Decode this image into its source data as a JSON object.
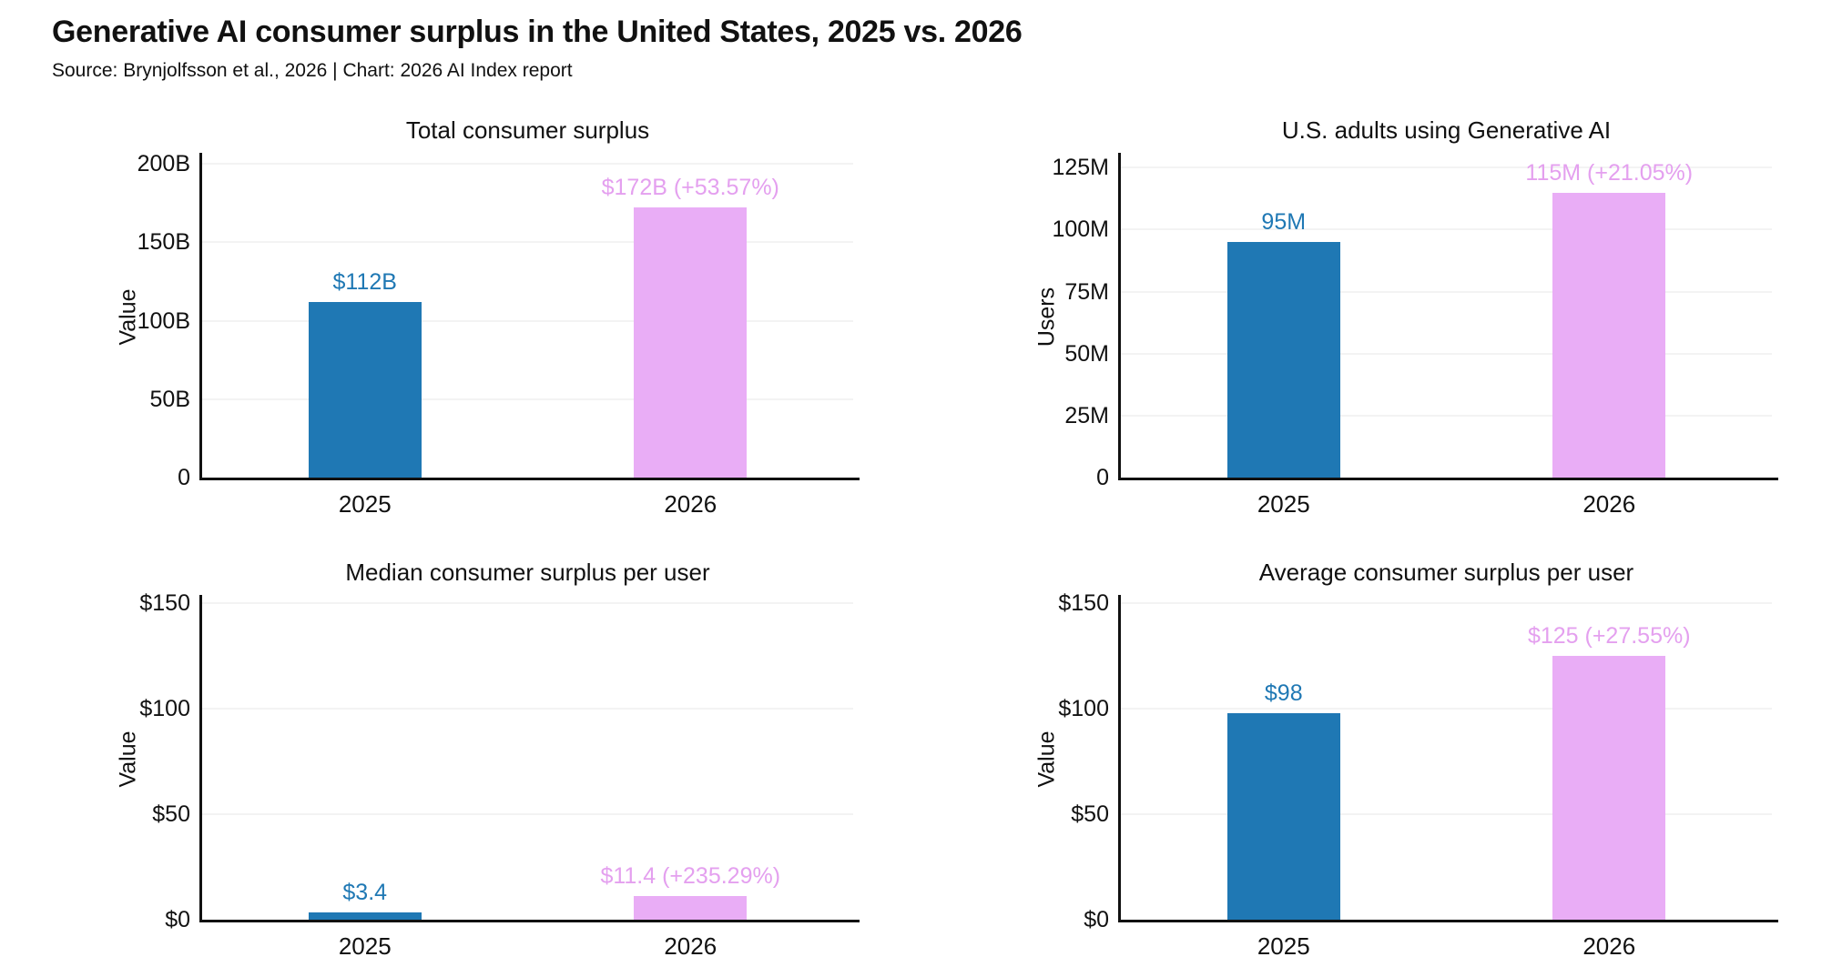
{
  "header": {
    "title": "Generative AI consumer surplus in the United States, 2025 vs. 2026",
    "subtitle": "Source: Brynjolfsson et al., 2026 | Chart: 2026 AI Index report"
  },
  "colors": {
    "background": "#ffffff",
    "text": "#111111",
    "axis": "#111111",
    "gridline": "#f3f3f3",
    "bar_2025": "#1f78b4",
    "bar_2026": "#e9adf6",
    "label_2025": "#1f78b4",
    "label_2026": "#e4a0ef"
  },
  "chart_data": [
    {
      "type": "bar",
      "title": "Total consumer surplus",
      "xlabel": "",
      "ylabel": "Value",
      "categories": [
        "2025",
        "2026"
      ],
      "values": [
        112,
        172
      ],
      "value_labels": [
        "$112B",
        "$172B (+53.57%)"
      ],
      "yticks": [
        0,
        50,
        100,
        150,
        200
      ],
      "ytick_labels": [
        "0",
        "50B",
        "100B",
        "150B",
        "200B"
      ],
      "ylim": [
        0,
        207
      ],
      "grid": "horizontal",
      "legend": "none"
    },
    {
      "type": "bar",
      "title": "U.S. adults using Generative AI",
      "xlabel": "",
      "ylabel": "Users",
      "categories": [
        "2025",
        "2026"
      ],
      "values": [
        95,
        115
      ],
      "value_labels": [
        "95M",
        "115M (+21.05%)"
      ],
      "yticks": [
        0,
        25,
        50,
        75,
        100,
        125
      ],
      "ytick_labels": [
        "0",
        "25M",
        "50M",
        "75M",
        "100M",
        "125M"
      ],
      "ylim": [
        0,
        131
      ],
      "grid": "horizontal",
      "legend": "none"
    },
    {
      "type": "bar",
      "title": "Median consumer surplus per user",
      "xlabel": "",
      "ylabel": "Value",
      "categories": [
        "2025",
        "2026"
      ],
      "values": [
        3.4,
        11.4
      ],
      "value_labels": [
        "$3.4",
        "$11.4 (+235.29%)"
      ],
      "yticks": [
        0,
        50,
        100,
        150
      ],
      "ytick_labels": [
        "$0",
        "$50",
        "$100",
        "$150"
      ],
      "ylim": [
        0,
        154
      ],
      "grid": "horizontal",
      "legend": "none"
    },
    {
      "type": "bar",
      "title": "Average consumer surplus per user",
      "xlabel": "",
      "ylabel": "Value",
      "categories": [
        "2025",
        "2026"
      ],
      "values": [
        98,
        125
      ],
      "value_labels": [
        "$98",
        "$125 (+27.55%)"
      ],
      "yticks": [
        0,
        50,
        100,
        150
      ],
      "ytick_labels": [
        "$0",
        "$50",
        "$100",
        "$150"
      ],
      "ylim": [
        0,
        154
      ],
      "grid": "horizontal",
      "legend": "none"
    }
  ]
}
